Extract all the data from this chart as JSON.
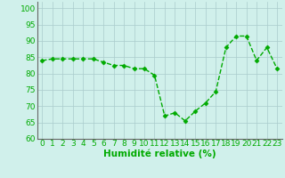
{
  "x": [
    0,
    1,
    2,
    3,
    4,
    5,
    6,
    7,
    8,
    9,
    10,
    11,
    12,
    13,
    14,
    15,
    16,
    17,
    18,
    19,
    20,
    21,
    22,
    23
  ],
  "y": [
    84,
    84.5,
    84.5,
    84.5,
    84.5,
    84.5,
    83.5,
    82.5,
    82.5,
    81.5,
    81.5,
    79.5,
    67,
    68,
    65.5,
    68.5,
    71,
    74.5,
    88,
    91.5,
    91.5,
    84,
    88,
    81.5
  ],
  "line_color": "#00aa00",
  "marker": "D",
  "marker_size": 2.5,
  "bg_color": "#d0f0eb",
  "grid_color": "#aacccc",
  "tick_color": "#00aa00",
  "xlabel": "Humidité relative (%)",
  "xlabel_color": "#00aa00",
  "xlim": [
    -0.5,
    23.5
  ],
  "ylim": [
    60,
    102
  ],
  "yticks": [
    60,
    65,
    70,
    75,
    80,
    85,
    90,
    95,
    100
  ],
  "xticks": [
    0,
    1,
    2,
    3,
    4,
    5,
    6,
    7,
    8,
    9,
    10,
    11,
    12,
    13,
    14,
    15,
    16,
    17,
    18,
    19,
    20,
    21,
    22,
    23
  ],
  "tick_fontsize": 6.5,
  "xlabel_fontsize": 7.5,
  "line_width": 1.0,
  "line_style": "--"
}
